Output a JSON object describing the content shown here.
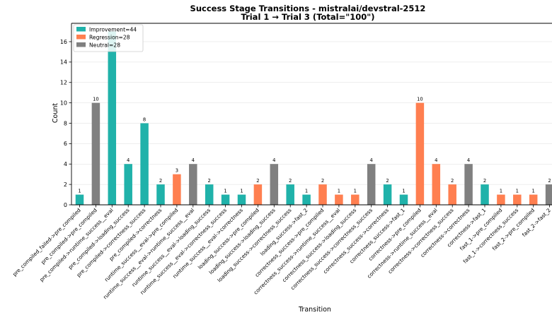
{
  "chart_data": {
    "type": "bar",
    "title": "Success Stage Transitions - mistralai/devstral-2512",
    "subtitle": "Trial 1 → Trial 3 (Total=\"100\")",
    "xlabel": "Transition",
    "ylabel": "Count",
    "ylim": [
      0,
      17.8
    ],
    "yticks": [
      0,
      2,
      4,
      6,
      8,
      10,
      12,
      14,
      16
    ],
    "grid": "y",
    "legend_position": "top-left",
    "colors": {
      "Improvement": "#20b2aa",
      "Regression": "#ff7f50",
      "Neutral": "#808080"
    },
    "legend": [
      {
        "label": "Improvement=44",
        "key": "Improvement"
      },
      {
        "label": "Regression=28",
        "key": "Regression"
      },
      {
        "label": "Neutral=28",
        "key": "Neutral"
      }
    ],
    "categories": [
      "pre_compiled_failed->pre_compiled",
      "pre_compiled->pre_compiled",
      "pre_compiled->runtime_success__eval",
      "pre_compiled->loading_success",
      "pre_compiled->correctness_success",
      "pre_compiled->correctness",
      "runtime_success__eval->pre_compiled",
      "runtime_success__eval->runtime_success__eval",
      "runtime_success__eval->loading_success",
      "runtime_success__eval->correctness_success",
      "runtime_success__eval->correctness",
      "loading_success->pre_compiled",
      "loading_success->loading_success",
      "loading_success->correctness_success",
      "loading_success->fast_2",
      "correctness_success->pre_compiled",
      "correctness_success->runtime_success__eval",
      "correctness_success->loading_success",
      "correctness_success->correctness_success",
      "correctness_success->correctness",
      "correctness_success->fast_1",
      "correctness->pre_compiled",
      "correctness->runtime_success__eval",
      "correctness->correctness_success",
      "correctness->correctness",
      "correctness->fast_1",
      "fast_1->pre_compiled",
      "fast_1->correctness_success",
      "fast_2->pre_compiled",
      "fast_2->fast_2"
    ],
    "values": [
      1,
      10,
      17,
      4,
      8,
      2,
      3,
      4,
      2,
      1,
      1,
      2,
      4,
      2,
      1,
      2,
      1,
      1,
      4,
      2,
      1,
      10,
      4,
      2,
      4,
      2,
      1,
      1,
      1,
      2
    ],
    "kinds": [
      "Improvement",
      "Neutral",
      "Improvement",
      "Improvement",
      "Improvement",
      "Improvement",
      "Regression",
      "Neutral",
      "Improvement",
      "Improvement",
      "Improvement",
      "Regression",
      "Neutral",
      "Improvement",
      "Improvement",
      "Regression",
      "Regression",
      "Regression",
      "Neutral",
      "Improvement",
      "Improvement",
      "Regression",
      "Regression",
      "Regression",
      "Neutral",
      "Improvement",
      "Regression",
      "Regression",
      "Regression",
      "Neutral"
    ],
    "data_labels": [
      "1",
      "10",
      "",
      "4",
      "8",
      "2",
      "3",
      "4",
      "2",
      "1",
      "1",
      "2",
      "4",
      "2",
      "1",
      "2",
      "1",
      "1",
      "4",
      "2",
      "1",
      "10",
      "4",
      "2",
      "4",
      "2",
      "1",
      "1",
      "1",
      "2"
    ]
  }
}
